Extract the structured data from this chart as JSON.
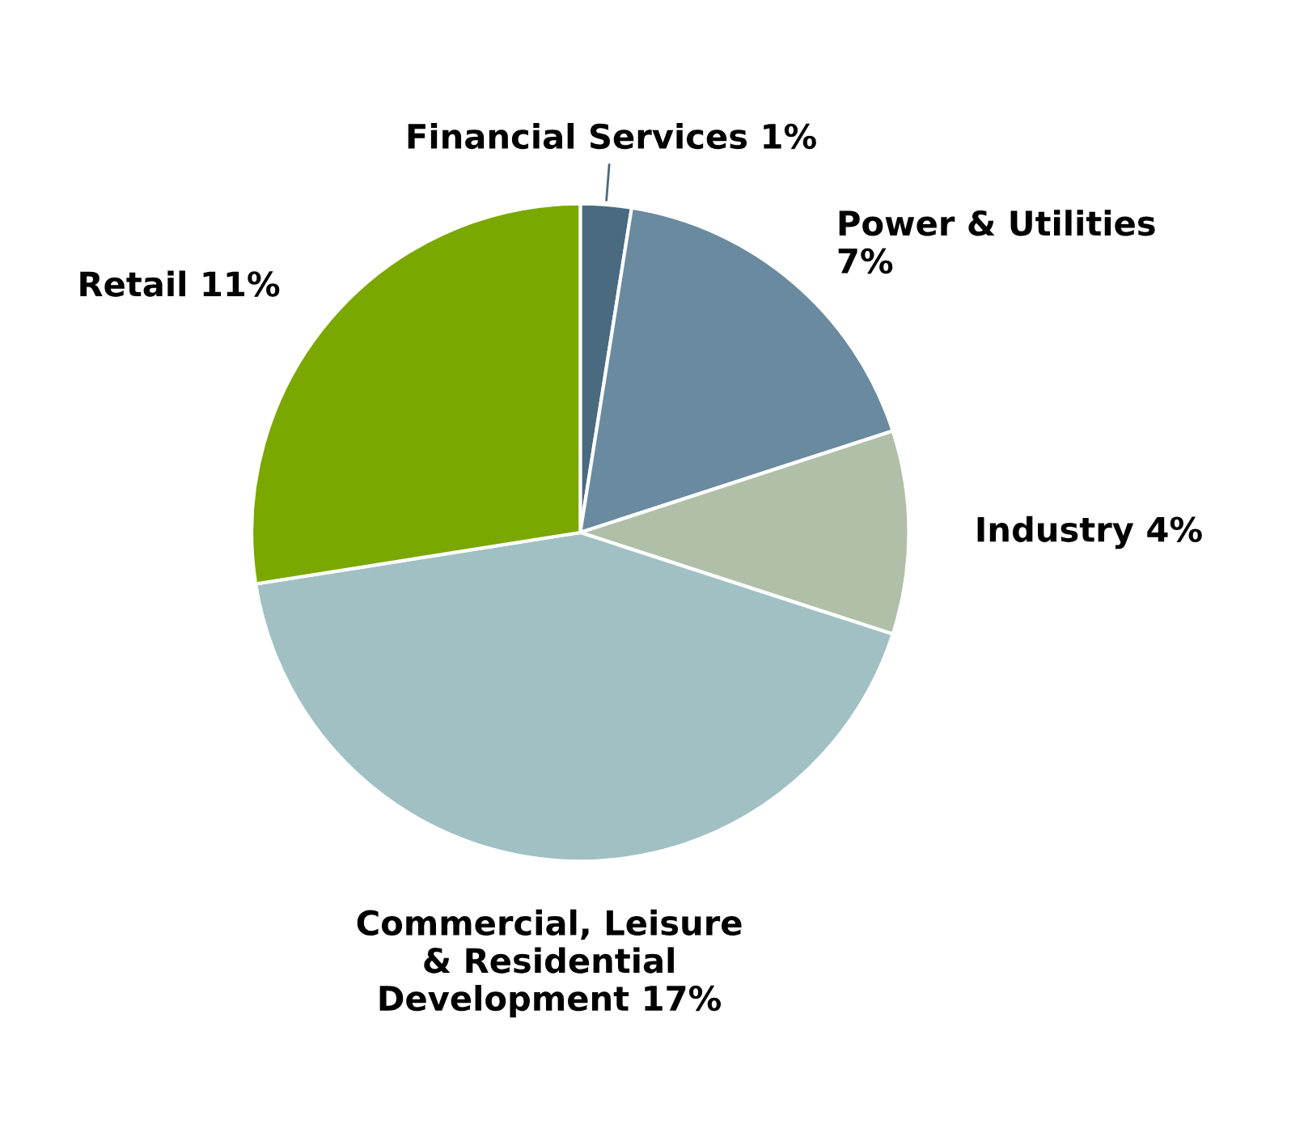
{
  "chart_data": {
    "type": "pie",
    "categories": [
      "Financial Services 1%",
      "Power & Utilities\n7%",
      "Industry 4%",
      "Commercial, Leisure\n& Residential\nDevelopment 17%",
      "Retail 11%"
    ],
    "values": [
      1,
      7,
      4,
      17,
      11
    ],
    "colors": [
      "#4a6a80",
      "#6a8aa0",
      "#b0c0a8",
      "#a0c0c4",
      "#7aa800"
    ]
  }
}
